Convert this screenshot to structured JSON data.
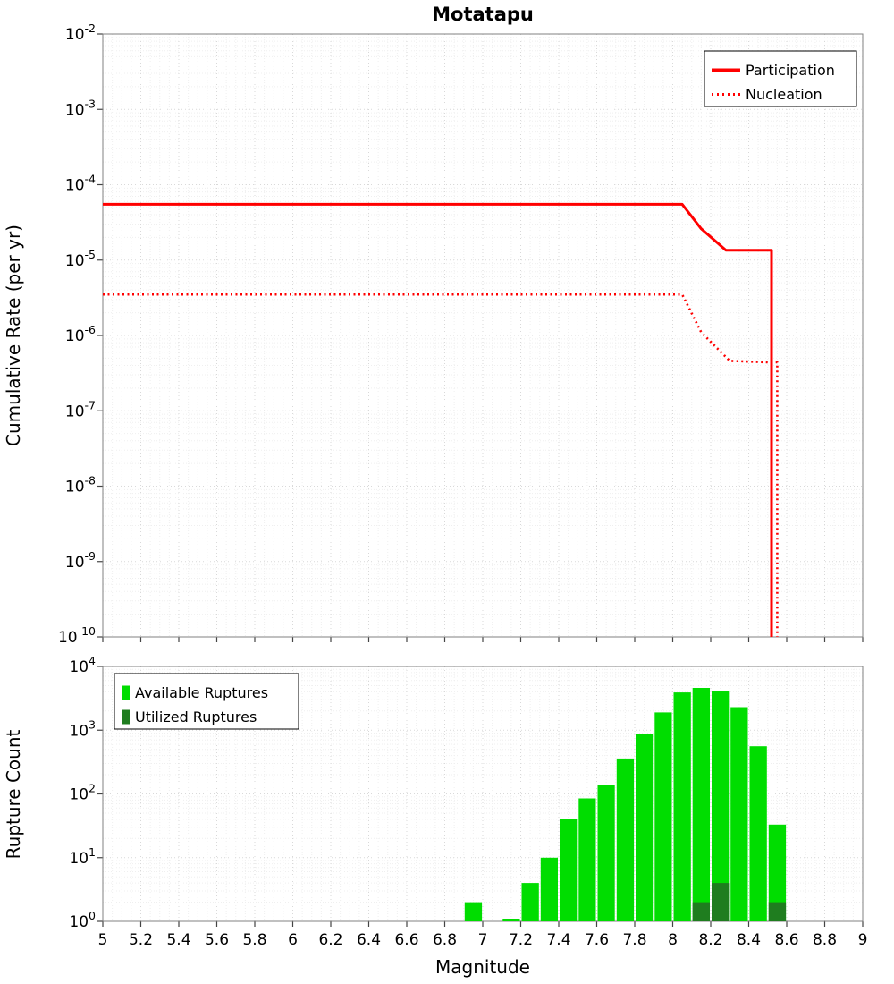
{
  "title": "Motatapu",
  "colors": {
    "participation": "#ff0000",
    "nucleation": "#ff0000",
    "available_ruptures": "#00dd00",
    "utilized_ruptures": "#1f7d1f",
    "grid_major": "#d9d9d9",
    "grid_minor": "#efefef",
    "plot_border": "#808080",
    "tick": "#444444"
  },
  "x_tick_labels": [
    "5",
    "5.2",
    "5.4",
    "5.6",
    "5.8",
    "6",
    "6.2",
    "6.4",
    "6.6",
    "6.8",
    "7",
    "7.2",
    "7.4",
    "7.6",
    "7.8",
    "8",
    "8.2",
    "8.4",
    "8.6",
    "8.8",
    "9"
  ],
  "chart_data": [
    {
      "type": "line",
      "title": "Motatapu",
      "xlabel": "",
      "ylabel": "Cumulative Rate (per yr)",
      "xlim": [
        5,
        9
      ],
      "x_tick_step": 0.2,
      "y_log_exponents": [
        -10,
        -2
      ],
      "grid": true,
      "legend_position": "top-right",
      "series": [
        {
          "name": "Participation",
          "style": "solid",
          "color": "#ff0000",
          "points": [
            [
              5.0,
              5.5e-05
            ],
            [
              8.05,
              5.5e-05
            ],
            [
              8.15,
              2.6e-05
            ],
            [
              8.28,
              1.35e-05
            ],
            [
              8.5,
              1.35e-05
            ],
            [
              8.52,
              1.35e-05
            ],
            [
              8.52,
              1e-10
            ]
          ]
        },
        {
          "name": "Nucleation",
          "style": "dotted",
          "color": "#ff0000",
          "points": [
            [
              5.0,
              3.5e-06
            ],
            [
              8.05,
              3.5e-06
            ],
            [
              8.15,
              1.1e-06
            ],
            [
              8.3,
              4.6e-07
            ],
            [
              8.5,
              4.4e-07
            ],
            [
              8.55,
              4.4e-07
            ],
            [
              8.55,
              1e-10
            ]
          ]
        }
      ]
    },
    {
      "type": "bar",
      "title": "",
      "xlabel": "Magnitude",
      "ylabel": "Rupture Count",
      "xlim": [
        5,
        9
      ],
      "x_tick_step": 0.2,
      "y_log_exponents": [
        0,
        4
      ],
      "bar_width": 0.1,
      "grid": true,
      "legend_position": "top-left",
      "series": [
        {
          "name": "Available Ruptures",
          "color": "#00dd00",
          "bins": [
            [
              6.95,
              2
            ],
            [
              7.15,
              1
            ],
            [
              7.25,
              4
            ],
            [
              7.35,
              10
            ],
            [
              7.45,
              40
            ],
            [
              7.55,
              85
            ],
            [
              7.65,
              140
            ],
            [
              7.75,
              360
            ],
            [
              7.85,
              880
            ],
            [
              7.95,
              1900
            ],
            [
              8.05,
              3900
            ],
            [
              8.15,
              4600
            ],
            [
              8.25,
              4100
            ],
            [
              8.35,
              2300
            ],
            [
              8.45,
              560
            ],
            [
              8.55,
              33
            ]
          ]
        },
        {
          "name": "Utilized Ruptures",
          "color": "#1f7d1f",
          "bins": [
            [
              8.15,
              2
            ],
            [
              8.25,
              4
            ],
            [
              8.55,
              2
            ]
          ]
        }
      ]
    }
  ]
}
